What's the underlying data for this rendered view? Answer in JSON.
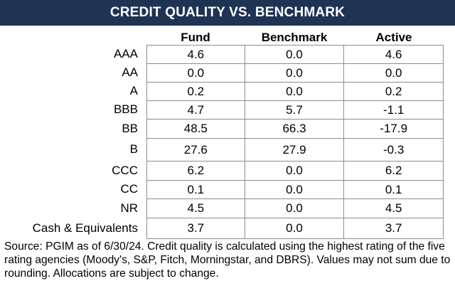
{
  "title": "CREDIT QUALITY VS. BENCHMARK",
  "columns": [
    "Fund",
    "Benchmark",
    "Active"
  ],
  "rows": [
    {
      "label": "AAA",
      "fund": "4.6",
      "benchmark": "0.0",
      "active": "4.6"
    },
    {
      "label": "AA",
      "fund": "0.0",
      "benchmark": "0.0",
      "active": "0.0"
    },
    {
      "label": "A",
      "fund": "0.2",
      "benchmark": "0.0",
      "active": "0.2"
    },
    {
      "label": "BBB",
      "fund": "4.7",
      "benchmark": "5.7",
      "active": "-1.1"
    },
    {
      "label": "BB",
      "fund": "48.5",
      "benchmark": "66.3",
      "active": "-17.9"
    },
    {
      "label": "B",
      "fund": "27.6",
      "benchmark": "27.9",
      "active": "-0.3"
    },
    {
      "label": "CCC",
      "fund": "6.2",
      "benchmark": "0.0",
      "active": "6.2"
    },
    {
      "label": "CC",
      "fund": "0.1",
      "benchmark": "0.0",
      "active": "0.1"
    },
    {
      "label": "NR",
      "fund": "4.5",
      "benchmark": "0.0",
      "active": "4.5"
    },
    {
      "label": "Cash & Equivalents",
      "fund": "3.7",
      "benchmark": "0.0",
      "active": "3.7"
    }
  ],
  "footnote": "Source: PGIM as of 6/30/24. Credit quality is calculated using the highest rating of the five rating agencies (Moody's, S&P, Fitch, Morningstar, and DBRS). Values may not sum due to rounding.  Allocations are subject to change."
}
